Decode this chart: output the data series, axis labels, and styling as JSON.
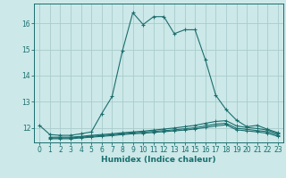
{
  "title": "",
  "xlabel": "Humidex (Indice chaleur)",
  "bg_color": "#cce8e8",
  "grid_color": "#aacccc",
  "line_color": "#1a6e6e",
  "xlim": [
    -0.5,
    23.5
  ],
  "ylim": [
    11.45,
    16.75
  ],
  "yticks": [
    12,
    13,
    14,
    15,
    16
  ],
  "xticks": [
    0,
    1,
    2,
    3,
    4,
    5,
    6,
    7,
    8,
    9,
    10,
    11,
    12,
    13,
    14,
    15,
    16,
    17,
    18,
    19,
    20,
    21,
    22,
    23
  ],
  "curve1_x": [
    0,
    1,
    2,
    3,
    4,
    5,
    6,
    7,
    8,
    9,
    10,
    11,
    12,
    13,
    14,
    15,
    16,
    17,
    18,
    19,
    20,
    21,
    22,
    23
  ],
  "curve1_y": [
    12.1,
    11.75,
    11.72,
    11.72,
    11.78,
    11.85,
    12.55,
    13.2,
    14.95,
    16.4,
    15.95,
    16.25,
    16.25,
    15.6,
    15.75,
    15.75,
    14.6,
    13.25,
    12.7,
    12.3,
    12.05,
    12.1,
    11.95,
    11.82
  ],
  "curve2_x": [
    1,
    2,
    3,
    4,
    5,
    6,
    7,
    8,
    9,
    10,
    11,
    12,
    13,
    14,
    15,
    16,
    17,
    18,
    19,
    20,
    21,
    22,
    23
  ],
  "curve2_y": [
    11.65,
    11.65,
    11.65,
    11.68,
    11.72,
    11.75,
    11.78,
    11.82,
    11.85,
    11.88,
    11.92,
    11.96,
    12.0,
    12.05,
    12.1,
    12.18,
    12.25,
    12.28,
    12.08,
    12.02,
    11.98,
    11.92,
    11.78
  ],
  "curve3_x": [
    1,
    2,
    3,
    4,
    5,
    6,
    7,
    8,
    9,
    10,
    11,
    12,
    13,
    14,
    15,
    16,
    17,
    18,
    19,
    20,
    21,
    22,
    23
  ],
  "curve3_y": [
    11.62,
    11.62,
    11.62,
    11.65,
    11.68,
    11.71,
    11.74,
    11.78,
    11.81,
    11.84,
    11.87,
    11.9,
    11.93,
    11.97,
    12.01,
    12.08,
    12.15,
    12.18,
    11.99,
    11.95,
    11.9,
    11.86,
    11.73
  ],
  "curve4_x": [
    1,
    2,
    3,
    4,
    5,
    6,
    7,
    8,
    9,
    10,
    11,
    12,
    13,
    14,
    15,
    16,
    17,
    18,
    19,
    20,
    21,
    22,
    23
  ],
  "curve4_y": [
    11.59,
    11.59,
    11.59,
    11.62,
    11.65,
    11.68,
    11.71,
    11.75,
    11.78,
    11.8,
    11.83,
    11.86,
    11.89,
    11.92,
    11.96,
    12.02,
    12.08,
    12.12,
    11.93,
    11.89,
    11.85,
    11.8,
    11.68
  ]
}
